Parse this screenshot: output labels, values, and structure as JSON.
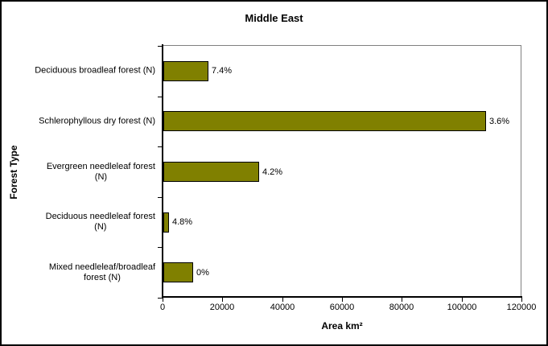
{
  "window": {
    "background": "#ffffff",
    "border_color": "#000000"
  },
  "colors": {
    "bar_fill": "#808000",
    "bar_border": "#000000",
    "plot_border": "#808080",
    "axis": "#000000",
    "text": "#000000"
  },
  "chart_data": {
    "type": "bar",
    "orientation": "horizontal",
    "title": "Middle East",
    "xlabel": "Area km²",
    "ylabel": "Forest Type",
    "categories": [
      "Deciduous broadleaf forest (N)",
      "Schlerophyllous dry forest (N)",
      "Evergreen needleleaf forest (N)",
      "Deciduous needleleaf forest (N)",
      "Mixed needleleaf/broadleaf forest (N)"
    ],
    "category_display_lines": [
      [
        "Deciduous broadleaf forest (N)"
      ],
      [
        "Schlerophyllous dry forest (N)"
      ],
      [
        "Evergreen needleleaf forest",
        "(N)"
      ],
      [
        "Deciduous needleleaf forest",
        "(N)"
      ],
      [
        "Mixed needleleaf/broadleaf",
        "forest (N)"
      ]
    ],
    "values": [
      15000,
      108000,
      32000,
      2000,
      10000
    ],
    "value_labels": [
      "7.4%",
      "3.6%",
      "4.2%",
      "4.8%",
      "0%"
    ],
    "xlim": [
      0,
      120000
    ],
    "x_tick_values": [
      0,
      20000,
      40000,
      60000,
      80000,
      100000,
      120000
    ],
    "x_tick_labels": [
      "0",
      "20000",
      "40000",
      "60000",
      "80000",
      "100000",
      "120000"
    ],
    "legend": "none",
    "grid": "off"
  }
}
